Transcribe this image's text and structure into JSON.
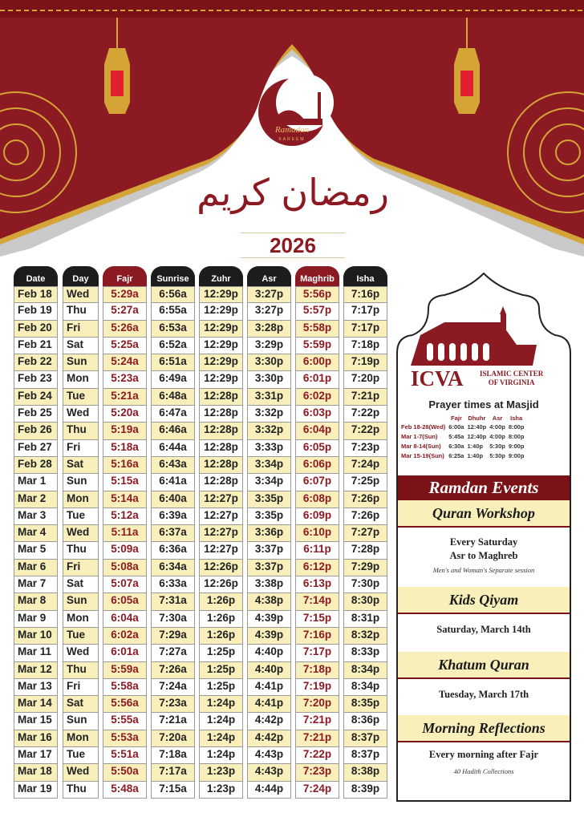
{
  "header": {
    "logo_title": "Ramadan",
    "logo_subtitle": "KAREEM",
    "arabic_title": "رمضان كريم",
    "year": "2026",
    "colors": {
      "primary": "#8b1a22",
      "gold": "#d4a437",
      "row_highlight": "#f8efbb"
    }
  },
  "table": {
    "columns": [
      "Date",
      "Day",
      "Fajr",
      "Sunrise",
      "Zuhr",
      "Asr",
      "Maghrib",
      "Isha"
    ],
    "highlight_columns": [
      "Fajr",
      "Maghrib"
    ],
    "rows": [
      [
        "Feb 18",
        "Wed",
        "5:29a",
        "6:56a",
        "12:29p",
        "3:27p",
        "5:56p",
        "7:16p"
      ],
      [
        "Feb 19",
        "Thu",
        "5:27a",
        "6:55a",
        "12:29p",
        "3:27p",
        "5:57p",
        "7:17p"
      ],
      [
        "Feb 20",
        "Fri",
        "5:26a",
        "6:53a",
        "12:29p",
        "3:28p",
        "5:58p",
        "7:17p"
      ],
      [
        "Feb 21",
        "Sat",
        "5:25a",
        "6:52a",
        "12:29p",
        "3:29p",
        "5:59p",
        "7:18p"
      ],
      [
        "Feb 22",
        "Sun",
        "5:24a",
        "6:51a",
        "12:29p",
        "3:30p",
        "6:00p",
        "7:19p"
      ],
      [
        "Feb 23",
        "Mon",
        "5:23a",
        "6:49a",
        "12:29p",
        "3:30p",
        "6:01p",
        "7:20p"
      ],
      [
        "Feb 24",
        "Tue",
        "5:21a",
        "6:48a",
        "12:28p",
        "3:31p",
        "6:02p",
        "7:21p"
      ],
      [
        "Feb 25",
        "Wed",
        "5:20a",
        "6:47a",
        "12:28p",
        "3:32p",
        "6:03p",
        "7:22p"
      ],
      [
        "Feb 26",
        "Thu",
        "5:19a",
        "6:46a",
        "12:28p",
        "3:32p",
        "6:04p",
        "7:22p"
      ],
      [
        "Feb 27",
        "Fri",
        "5:18a",
        "6:44a",
        "12:28p",
        "3:33p",
        "6:05p",
        "7:23p"
      ],
      [
        "Feb 28",
        "Sat",
        "5:16a",
        "6:43a",
        "12:28p",
        "3:34p",
        "6:06p",
        "7:24p"
      ],
      [
        "Mar 1",
        "Sun",
        "5:15a",
        "6:41a",
        "12:28p",
        "3:34p",
        "6:07p",
        "7:25p"
      ],
      [
        "Mar 2",
        "Mon",
        "5:14a",
        "6:40a",
        "12:27p",
        "3:35p",
        "6:08p",
        "7:26p"
      ],
      [
        "Mar 3",
        "Tue",
        "5:12a",
        "6:39a",
        "12:27p",
        "3:35p",
        "6:09p",
        "7:26p"
      ],
      [
        "Mar 4",
        "Wed",
        "5:11a",
        "6:37a",
        "12:27p",
        "3:36p",
        "6:10p",
        "7:27p"
      ],
      [
        "Mar 5",
        "Thu",
        "5:09a",
        "6:36a",
        "12:27p",
        "3:37p",
        "6:11p",
        "7:28p"
      ],
      [
        "Mar 6",
        "Fri",
        "5:08a",
        "6:34a",
        "12:26p",
        "3:37p",
        "6:12p",
        "7:29p"
      ],
      [
        "Mar 7",
        "Sat",
        "5:07a",
        "6:33a",
        "12:26p",
        "3:38p",
        "6:13p",
        "7:30p"
      ],
      [
        "Mar 8",
        "Sun",
        "6:05a",
        "7:31a",
        "1:26p",
        "4:38p",
        "7:14p",
        "8:30p"
      ],
      [
        "Mar 9",
        "Mon",
        "6:04a",
        "7:30a",
        "1:26p",
        "4:39p",
        "7:15p",
        "8:31p"
      ],
      [
        "Mar 10",
        "Tue",
        "6:02a",
        "7:29a",
        "1:26p",
        "4:39p",
        "7:16p",
        "8:32p"
      ],
      [
        "Mar 11",
        "Wed",
        "6:01a",
        "7:27a",
        "1:25p",
        "4:40p",
        "7:17p",
        "8:33p"
      ],
      [
        "Mar 12",
        "Thu",
        "5:59a",
        "7:26a",
        "1:25p",
        "4:40p",
        "7:18p",
        "8:34p"
      ],
      [
        "Mar 13",
        "Fri",
        "5:58a",
        "7:24a",
        "1:25p",
        "4:41p",
        "7:19p",
        "8:34p"
      ],
      [
        "Mar 14",
        "Sat",
        "5:56a",
        "7:23a",
        "1:24p",
        "4:41p",
        "7:20p",
        "8:35p"
      ],
      [
        "Mar 15",
        "Sun",
        "5:55a",
        "7:21a",
        "1:24p",
        "4:42p",
        "7:21p",
        "8:36p"
      ],
      [
        "Mar 16",
        "Mon",
        "5:53a",
        "7:20a",
        "1:24p",
        "4:42p",
        "7:21p",
        "8:37p"
      ],
      [
        "Mar 17",
        "Tue",
        "5:51a",
        "7:18a",
        "1:24p",
        "4:43p",
        "7:22p",
        "8:37p"
      ],
      [
        "Mar 18",
        "Wed",
        "5:50a",
        "7:17a",
        "1:23p",
        "4:43p",
        "7:23p",
        "8:38p"
      ],
      [
        "Mar 19",
        "Thu",
        "5:48a",
        "7:15a",
        "1:23p",
        "4:44p",
        "7:24p",
        "8:39p"
      ]
    ]
  },
  "panel": {
    "org_abbr": "ICVA",
    "org_name_line1": "ISLAMIC CENTER",
    "org_name_line2": "OF VIRGINIA",
    "prayer_title": "Prayer times at Masjid",
    "prayer_headers": [
      "Fajr",
      "Dhuhr",
      "Asr",
      "Isha"
    ],
    "prayer_rows": [
      {
        "label": "Feb 18-28(Wed)",
        "times": [
          "6:00a",
          "12:40p",
          "4:00p",
          "8:00p"
        ]
      },
      {
        "label": "Mar 1-7(Sun)",
        "times": [
          "5:45a",
          "12:40p",
          "4:00p",
          "8:00p"
        ]
      },
      {
        "label": "Mar 8-14(Sun)",
        "times": [
          "6:30a",
          "1:40p",
          "5:30p",
          "9:00p"
        ]
      },
      {
        "label": "Mar 15-19(Sun)",
        "times": [
          "6:25a",
          "1:40p",
          "5:30p",
          "9:00p"
        ]
      }
    ],
    "events_title": "Ramdan Events",
    "events": [
      {
        "title": "Quran Workshop",
        "line1": "Every Saturday",
        "line2": "Asr to Maghreb",
        "note": "Men's and Woman's Separate session"
      },
      {
        "title": "Kids Qiyam",
        "line1": "Saturday, March 14th"
      },
      {
        "title": "Khatum Quran",
        "line1": "Tuesday, March 17th"
      },
      {
        "title": "Morning Reflections",
        "line1": "Every morning after Fajr",
        "note": "40 Hadith Collections"
      }
    ]
  }
}
